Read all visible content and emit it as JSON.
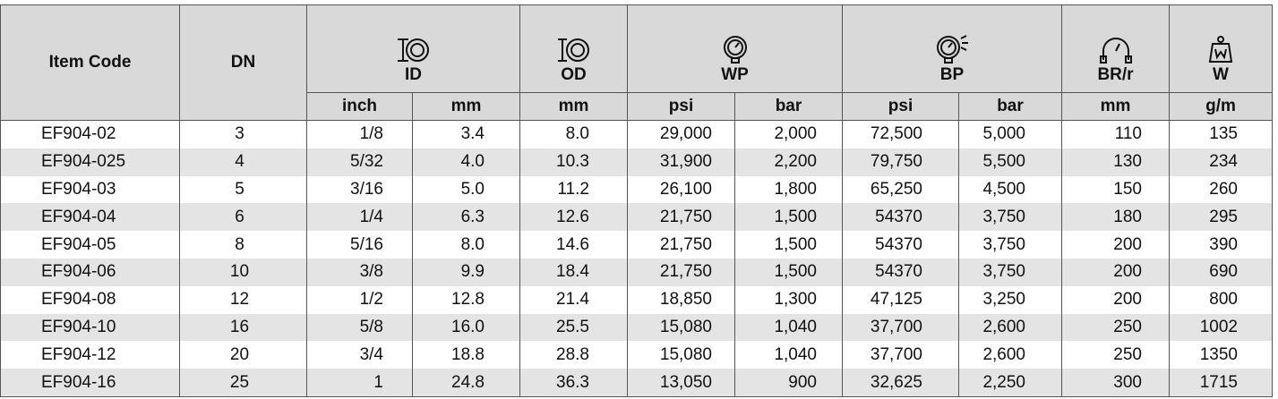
{
  "header": {
    "item_code": "Item Code",
    "dn": "DN",
    "groups": [
      {
        "label": "ID",
        "units": [
          "inch",
          "mm"
        ]
      },
      {
        "label": "OD",
        "units": [
          "mm"
        ]
      },
      {
        "label": "WP",
        "units": [
          "psi",
          "bar"
        ]
      },
      {
        "label": "BP",
        "units": [
          "psi",
          "bar"
        ]
      },
      {
        "label": "BR/r",
        "units": [
          "mm"
        ]
      },
      {
        "label": "W",
        "units": [
          "g/m"
        ]
      }
    ]
  },
  "table": {
    "rows": [
      [
        "EF904-02",
        "3",
        "1/8",
        "3.4",
        "8.0",
        "29,000",
        "2,000",
        "72,500",
        "5,000",
        "110",
        "135"
      ],
      [
        "EF904-025",
        "4",
        "5/32",
        "4.0",
        "10.3",
        "31,900",
        "2,200",
        "79,750",
        "5,500",
        "130",
        "234"
      ],
      [
        "EF904-03",
        "5",
        "3/16",
        "5.0",
        "11.2",
        "26,100",
        "1,800",
        "65,250",
        "4,500",
        "150",
        "260"
      ],
      [
        "EF904-04",
        "6",
        "1/4",
        "6.3",
        "12.6",
        "21,750",
        "1,500",
        "54370",
        "3,750",
        "180",
        "295"
      ],
      [
        "EF904-05",
        "8",
        "5/16",
        "8.0",
        "14.6",
        "21,750",
        "1,500",
        "54370",
        "3,750",
        "200",
        "390"
      ],
      [
        "EF904-06",
        "10",
        "3/8",
        "9.9",
        "18.4",
        "21,750",
        "1,500",
        "54370",
        "3,750",
        "200",
        "690"
      ],
      [
        "EF904-08",
        "12",
        "1/2",
        "12.8",
        "21.4",
        "18,850",
        "1,300",
        "47,125",
        "3,250",
        "200",
        "800"
      ],
      [
        "EF904-10",
        "16",
        "5/8",
        "16.0",
        "25.5",
        "15,080",
        "1,040",
        "37,700",
        "2,600",
        "250",
        "1002"
      ],
      [
        "EF904-12",
        "20",
        "3/4",
        "18.8",
        "28.8",
        "15,080",
        "1,040",
        "37,700",
        "2,600",
        "250",
        "1350"
      ],
      [
        "EF904-16",
        "25",
        "1",
        "24.8",
        "36.3",
        "13,050",
        "900",
        "32,625",
        "2,250",
        "300",
        "1715"
      ]
    ]
  }
}
